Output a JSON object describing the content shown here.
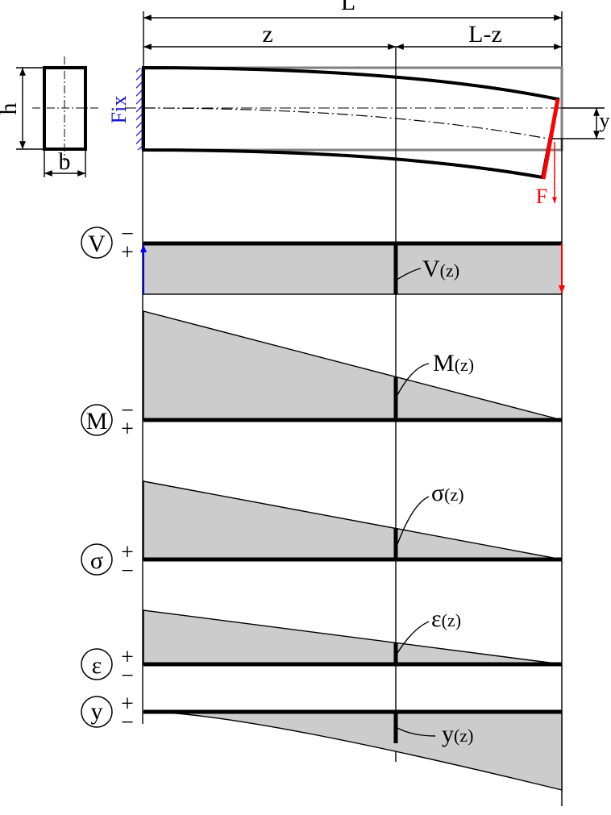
{
  "dimensions": {
    "total_length": "L",
    "segment_z": "z",
    "segment_remaining": "L-z",
    "height": "h",
    "width": "b",
    "deflection": "y"
  },
  "support": {
    "label": "Fix",
    "color": "#1515d8"
  },
  "load": {
    "label": "F",
    "color": "#ff0000"
  },
  "diagrams": {
    "shear": {
      "symbol": "V",
      "sign_top": "−",
      "sign_bottom": "+",
      "annotation": "V",
      "arg": "(z)"
    },
    "moment": {
      "symbol": "M",
      "sign_top": "−",
      "sign_bottom": "+",
      "annotation": "M",
      "arg": "(z)"
    },
    "stress": {
      "symbol": "σ",
      "sign_top": "+",
      "sign_bottom": "−",
      "annotation": "σ",
      "arg": "(z)"
    },
    "strain": {
      "symbol": "ε",
      "sign_top": "+",
      "sign_bottom": "−",
      "annotation": "ε",
      "arg": "(z)"
    },
    "deflection": {
      "symbol": "y",
      "sign_top": "+",
      "sign_bottom": "−",
      "annotation": "y",
      "arg": "(z)"
    }
  },
  "colors": {
    "fill": "#cccccc",
    "reaction": "#0000ff",
    "line": "#000000"
  }
}
